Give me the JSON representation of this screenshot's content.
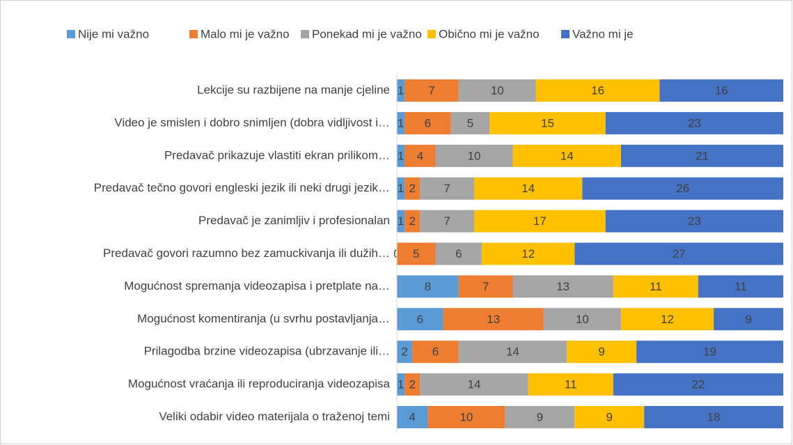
{
  "chart_data": {
    "type": "bar",
    "orientation": "horizontal",
    "stacked": true,
    "categories": [
      "Lekcije su razbijene na manje cjeline",
      "Video je smislen i dobro snimljen (dobra vidljivost i…",
      "Predavač prikazuje vlastiti ekran prilikom…",
      "Predavač tečno govori engleski jezik ili neki drugi jezik…",
      "Predavač je zanimljiv i profesionalan",
      "Predavač govori razumno bez zamuckivanja ili dužih…",
      "Mogućnost spremanja videozapisa i pretplate na…",
      "Mogućnost komentiranja (u svrhu postavljanja…",
      "Prilagodba brzine videozapisa (ubrzavanje ili…",
      "Mogućnost vraćanja ili reproduciranja videozapisa",
      "Veliki odabir video materijala o traženoj temi"
    ],
    "series": [
      {
        "name": "Nije mi važno",
        "color": "#5b9bd5",
        "values": [
          1,
          1,
          1,
          1,
          1,
          0,
          8,
          6,
          2,
          1,
          4
        ]
      },
      {
        "name": "Malo mi je važno",
        "color": "#ed7d31",
        "values": [
          7,
          6,
          4,
          2,
          2,
          5,
          7,
          13,
          6,
          2,
          10
        ]
      },
      {
        "name": "Ponekad mi je važno",
        "color": "#a5a5a5",
        "values": [
          10,
          5,
          10,
          7,
          7,
          6,
          13,
          10,
          14,
          14,
          9
        ]
      },
      {
        "name": "Obično mi je važno",
        "color": "#ffc000",
        "values": [
          16,
          15,
          14,
          14,
          17,
          12,
          11,
          12,
          9,
          11,
          9
        ]
      },
      {
        "name": "Važno mi je",
        "color": "#4472c4",
        "values": [
          16,
          23,
          21,
          26,
          23,
          27,
          11,
          9,
          19,
          22,
          18
        ]
      }
    ],
    "xlim": [
      0,
      50
    ],
    "legend": "top"
  }
}
